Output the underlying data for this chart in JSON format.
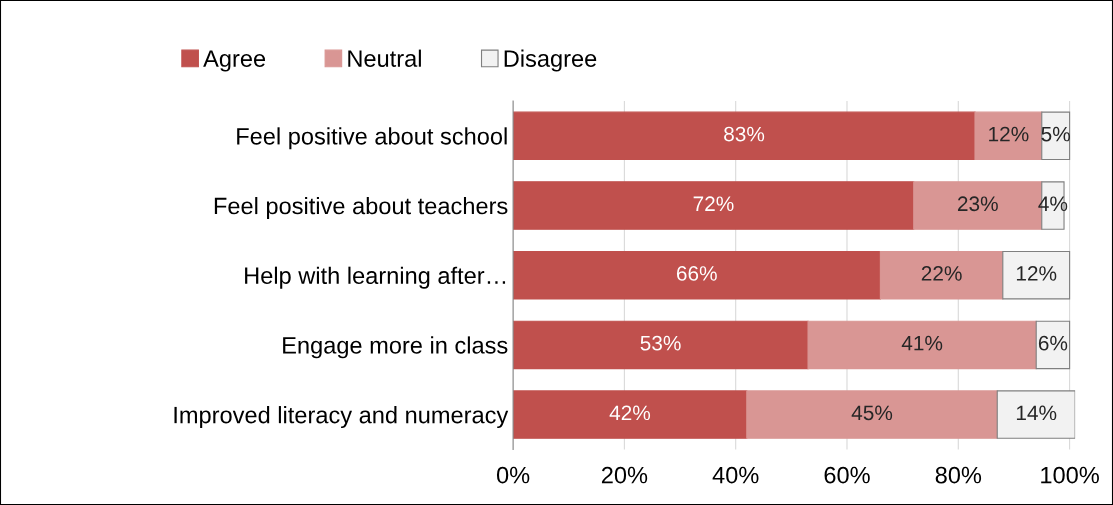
{
  "chart_data": {
    "type": "bar",
    "orientation": "horizontal",
    "stacked": true,
    "categories": [
      "Feel positive about school",
      "Feel positive about teachers",
      "Help with learning after…",
      "Engage more in class",
      "Improved literacy and numeracy"
    ],
    "series": [
      {
        "name": "Agree",
        "color": "#c0504d",
        "values": [
          83,
          72,
          66,
          53,
          42
        ],
        "value_labels": [
          "83%",
          "72%",
          "66%",
          "53%",
          "42%"
        ]
      },
      {
        "name": "Neutral",
        "color": "#d99694",
        "values": [
          12,
          23,
          22,
          41,
          45
        ],
        "value_labels": [
          "12%",
          "23%",
          "22%",
          "41%",
          "45%"
        ]
      },
      {
        "name": "Disagree",
        "color": "#f2f2f2",
        "values": [
          5,
          4,
          12,
          6,
          14
        ],
        "value_labels": [
          "5%",
          "4%",
          "12%",
          "6%",
          "14%"
        ]
      }
    ],
    "xlim": [
      0,
      101
    ],
    "xticks": [
      {
        "value": 0,
        "label": "0%"
      },
      {
        "value": 20,
        "label": "20%"
      },
      {
        "value": 40,
        "label": "40%"
      },
      {
        "value": 60,
        "label": "60%"
      },
      {
        "value": 80,
        "label": "80%"
      },
      {
        "value": 100,
        "label": "100%"
      }
    ],
    "grid": "x",
    "legend": "top"
  }
}
